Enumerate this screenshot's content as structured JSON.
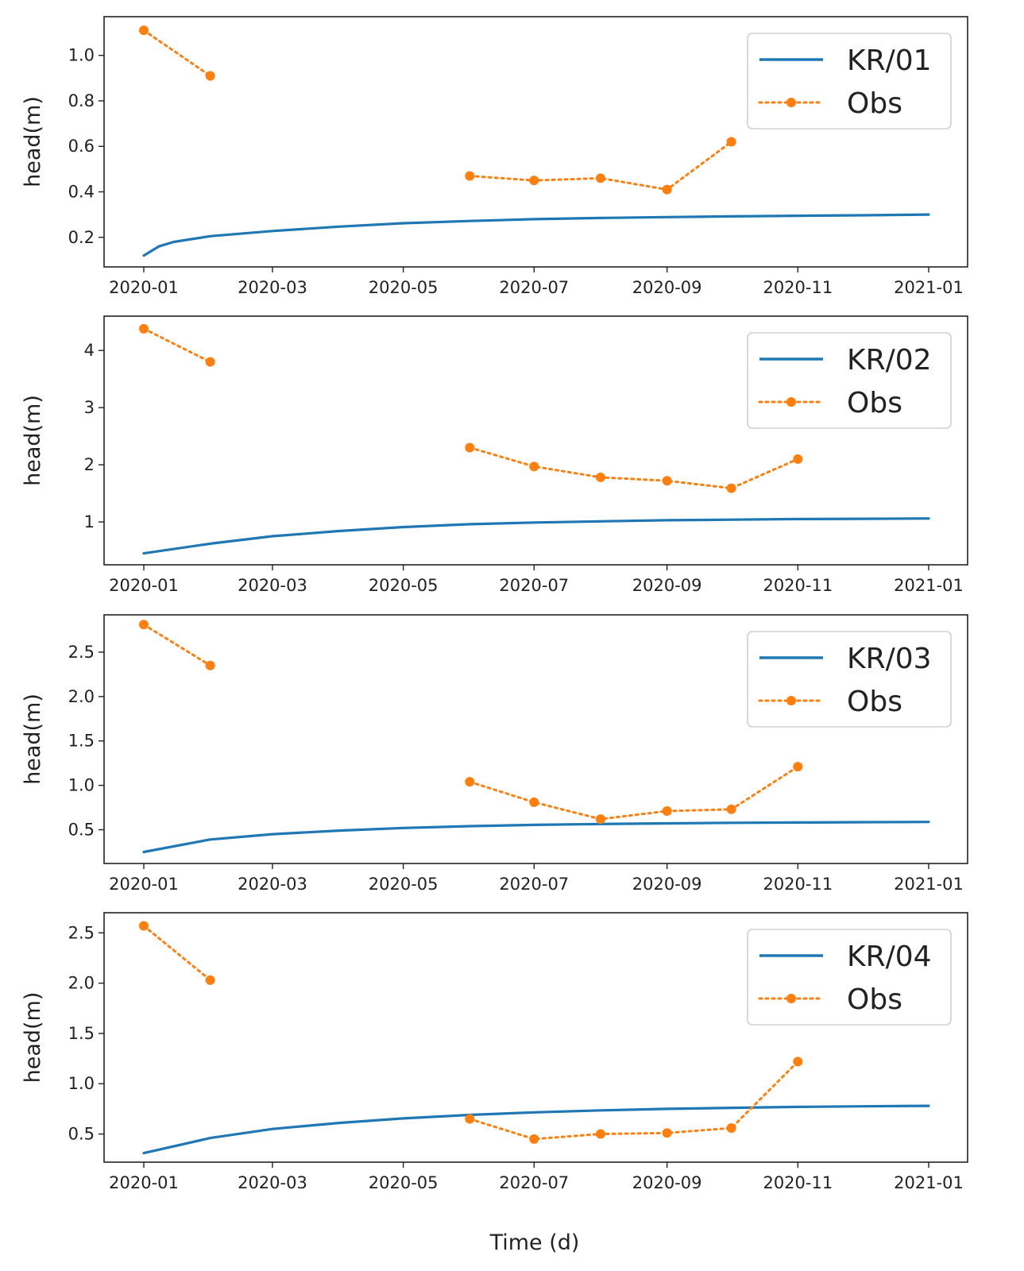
{
  "figure": {
    "xlabel": "Time (d)",
    "colors": {
      "model": "#1f77b4",
      "obs": "#ff7f0e"
    }
  },
  "chart_data": [
    {
      "type": "line",
      "ylabel": "head(m)",
      "xlim": [
        "2020-01-01",
        "2021-01-01"
      ],
      "ylim": [
        0.07,
        1.17
      ],
      "x_ticks": [
        "2020-01",
        "2020-03",
        "2020-05",
        "2020-07",
        "2020-09",
        "2020-11",
        "2021-01"
      ],
      "y_ticks": [
        0.2,
        0.4,
        0.6,
        0.8,
        1.0
      ],
      "y_tick_labels": [
        "0.2",
        "0.4",
        "0.6",
        "0.8",
        "1.0"
      ],
      "legend_position": "top-right",
      "series": [
        {
          "name": "KR/01",
          "style": "solid",
          "x": [
            "2020-01-01",
            "2020-01-08",
            "2020-01-15",
            "2020-02-01",
            "2020-03-01",
            "2020-04-01",
            "2020-05-01",
            "2020-06-01",
            "2020-07-01",
            "2020-08-01",
            "2020-09-01",
            "2020-10-01",
            "2020-11-01",
            "2020-12-01",
            "2021-01-01"
          ],
          "y": [
            0.12,
            0.16,
            0.18,
            0.205,
            0.228,
            0.247,
            0.262,
            0.272,
            0.28,
            0.285,
            0.289,
            0.292,
            0.295,
            0.297,
            0.3
          ]
        },
        {
          "name": "Obs",
          "style": "dotted-markers",
          "segments": [
            {
              "x": [
                "2020-01-01",
                "2020-02-01"
              ],
              "y": [
                1.11,
                0.91
              ]
            },
            {
              "x": [
                "2020-06-01",
                "2020-07-01",
                "2020-08-01",
                "2020-09-01",
                "2020-10-01"
              ],
              "y": [
                0.47,
                0.45,
                0.46,
                0.41,
                0.62
              ]
            }
          ]
        }
      ]
    },
    {
      "type": "line",
      "ylabel": "head(m)",
      "xlim": [
        "2020-01-01",
        "2021-01-01"
      ],
      "ylim": [
        0.25,
        4.6
      ],
      "x_ticks": [
        "2020-01",
        "2020-03",
        "2020-05",
        "2020-07",
        "2020-09",
        "2020-11",
        "2021-01"
      ],
      "y_ticks": [
        1,
        2,
        3,
        4
      ],
      "y_tick_labels": [
        "1",
        "2",
        "3",
        "4"
      ],
      "legend_position": "top-right",
      "series": [
        {
          "name": "KR/02",
          "style": "solid",
          "x": [
            "2020-01-01",
            "2020-02-01",
            "2020-03-01",
            "2020-04-01",
            "2020-05-01",
            "2020-06-01",
            "2020-07-01",
            "2020-08-01",
            "2020-09-01",
            "2020-10-01",
            "2020-11-01",
            "2020-12-01",
            "2021-01-01"
          ],
          "y": [
            0.45,
            0.62,
            0.75,
            0.84,
            0.91,
            0.96,
            0.99,
            1.01,
            1.03,
            1.04,
            1.05,
            1.055,
            1.06
          ]
        },
        {
          "name": "Obs",
          "style": "dotted-markers",
          "segments": [
            {
              "x": [
                "2020-01-01",
                "2020-02-01"
              ],
              "y": [
                4.38,
                3.8
              ]
            },
            {
              "x": [
                "2020-06-01",
                "2020-07-01",
                "2020-08-01",
                "2020-09-01",
                "2020-10-01",
                "2020-11-01"
              ],
              "y": [
                2.3,
                1.97,
                1.78,
                1.72,
                1.59,
                2.1
              ]
            }
          ]
        }
      ]
    },
    {
      "type": "line",
      "ylabel": "head(m)",
      "xlim": [
        "2020-01-01",
        "2021-01-01"
      ],
      "ylim": [
        0.12,
        2.92
      ],
      "x_ticks": [
        "2020-01",
        "2020-03",
        "2020-05",
        "2020-07",
        "2020-09",
        "2020-11",
        "2021-01"
      ],
      "y_ticks": [
        0.5,
        1.0,
        1.5,
        2.0,
        2.5
      ],
      "y_tick_labels": [
        "0.5",
        "1.0",
        "1.5",
        "2.0",
        "2.5"
      ],
      "legend_position": "top-right",
      "series": [
        {
          "name": "KR/03",
          "style": "solid",
          "x": [
            "2020-01-01",
            "2020-02-01",
            "2020-03-01",
            "2020-04-01",
            "2020-05-01",
            "2020-06-01",
            "2020-07-01",
            "2020-08-01",
            "2020-09-01",
            "2020-10-01",
            "2020-11-01",
            "2020-12-01",
            "2021-01-01"
          ],
          "y": [
            0.25,
            0.39,
            0.45,
            0.49,
            0.52,
            0.54,
            0.555,
            0.565,
            0.572,
            0.578,
            0.582,
            0.585,
            0.588
          ]
        },
        {
          "name": "Obs",
          "style": "dotted-markers",
          "segments": [
            {
              "x": [
                "2020-01-01",
                "2020-02-01"
              ],
              "y": [
                2.81,
                2.35
              ]
            },
            {
              "x": [
                "2020-06-01",
                "2020-07-01",
                "2020-08-01",
                "2020-09-01",
                "2020-10-01",
                "2020-11-01"
              ],
              "y": [
                1.04,
                0.81,
                0.62,
                0.71,
                0.73,
                1.21
              ]
            }
          ]
        }
      ]
    },
    {
      "type": "line",
      "ylabel": "head(m)",
      "xlim": [
        "2020-01-01",
        "2021-01-01"
      ],
      "ylim": [
        0.22,
        2.7
      ],
      "x_ticks": [
        "2020-01",
        "2020-03",
        "2020-05",
        "2020-07",
        "2020-09",
        "2020-11",
        "2021-01"
      ],
      "y_ticks": [
        0.5,
        1.0,
        1.5,
        2.0,
        2.5
      ],
      "y_tick_labels": [
        "0.5",
        "1.0",
        "1.5",
        "2.0",
        "2.5"
      ],
      "legend_position": "top-right",
      "series": [
        {
          "name": "KR/04",
          "style": "solid",
          "x": [
            "2020-01-01",
            "2020-02-01",
            "2020-03-01",
            "2020-04-01",
            "2020-05-01",
            "2020-06-01",
            "2020-07-01",
            "2020-08-01",
            "2020-09-01",
            "2020-10-01",
            "2020-11-01",
            "2020-12-01",
            "2021-01-01"
          ],
          "y": [
            0.31,
            0.46,
            0.55,
            0.61,
            0.655,
            0.69,
            0.715,
            0.735,
            0.75,
            0.76,
            0.77,
            0.775,
            0.78
          ]
        },
        {
          "name": "Obs",
          "style": "dotted-markers",
          "segments": [
            {
              "x": [
                "2020-01-01",
                "2020-02-01"
              ],
              "y": [
                2.57,
                2.03
              ]
            },
            {
              "x": [
                "2020-06-01",
                "2020-07-01",
                "2020-08-01",
                "2020-09-01",
                "2020-10-01",
                "2020-11-01"
              ],
              "y": [
                0.65,
                0.45,
                0.5,
                0.51,
                0.56,
                1.22
              ]
            }
          ]
        }
      ]
    }
  ]
}
